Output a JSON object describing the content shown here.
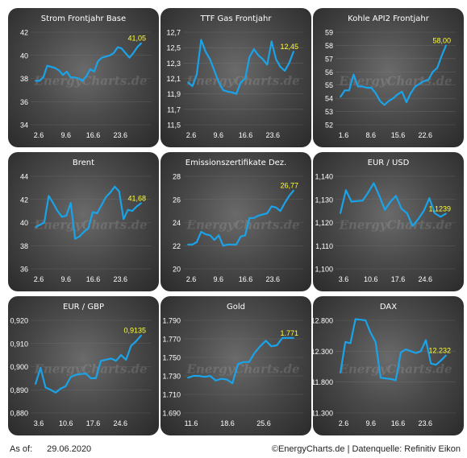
{
  "footer": {
    "asof_label": "As of:",
    "date": "29.06.2020",
    "source": "©EnergyCharts.de | Datenquelle: Refinitiv Eikon"
  },
  "watermark": "EnergyCharts.de",
  "colors": {
    "line": "#1aa3e8",
    "last_value": "#ffff33",
    "text": "#ffffff",
    "grid": "#7a7a7a"
  },
  "chart_data": [
    {
      "type": "line",
      "title": "Strom Frontjahr Base",
      "yticks": [
        "42",
        "40",
        "38",
        "36",
        "34"
      ],
      "ylim": [
        34,
        42
      ],
      "xticks": [
        "2.6",
        "9.6",
        "16.6",
        "23.6"
      ],
      "last_label": "41,05",
      "values": [
        37.8,
        37.8,
        38.1,
        39.1,
        39.0,
        38.9,
        38.7,
        38.3,
        38.6,
        38.1,
        38.1,
        38.0,
        37.8,
        38.2,
        38.8,
        38.6,
        39.5,
        39.8,
        39.9,
        40.0,
        40.2,
        40.7,
        40.6,
        40.2,
        39.8,
        40.2,
        40.7,
        41.05
      ]
    },
    {
      "type": "line",
      "title": "TTF Gas Frontjahr",
      "yticks": [
        "12,7",
        "12,5",
        "12,3",
        "12,1",
        "11,9",
        "11,7",
        "11,5"
      ],
      "ylim": [
        11.5,
        12.7
      ],
      "xticks": [
        "2.6",
        "9.6",
        "16.6",
        "23.6"
      ],
      "last_label": "12,45",
      "values": [
        12.05,
        12.0,
        12.15,
        12.6,
        12.45,
        12.35,
        12.2,
        12.05,
        11.95,
        11.93,
        11.92,
        11.9,
        12.05,
        12.1,
        12.38,
        12.48,
        12.4,
        12.35,
        12.28,
        12.58,
        12.35,
        12.25,
        12.2,
        12.3,
        12.45
      ]
    },
    {
      "type": "line",
      "title": "Kohle API2 Frontjahr",
      "yticks": [
        "59",
        "58",
        "57",
        "56",
        "55",
        "54",
        "53",
        "52"
      ],
      "ylim": [
        52,
        59
      ],
      "xticks": [
        "1.6",
        "8.6",
        "15.6",
        "22.6"
      ],
      "last_label": "58,00",
      "values": [
        54.1,
        54.6,
        54.6,
        55.8,
        54.9,
        54.9,
        54.8,
        54.8,
        54.4,
        53.8,
        53.5,
        53.8,
        54.0,
        54.3,
        54.5,
        53.7,
        54.4,
        54.9,
        55.1,
        55.3,
        55.4,
        56.0,
        56.3,
        57.2,
        58.0
      ]
    },
    {
      "type": "line",
      "title": "Brent",
      "yticks": [
        "44",
        "42",
        "40",
        "38",
        "36"
      ],
      "ylim": [
        36,
        44
      ],
      "xticks": [
        "2.6",
        "9.6",
        "16.6",
        "23.6"
      ],
      "last_label": "41,68",
      "values": [
        39.6,
        39.8,
        40.0,
        42.3,
        41.7,
        41.0,
        40.5,
        40.6,
        41.7,
        38.6,
        38.8,
        39.2,
        39.5,
        40.9,
        40.8,
        41.5,
        42.2,
        42.6,
        43.1,
        42.7,
        40.3,
        41.1,
        41.0,
        41.4,
        41.68
      ]
    },
    {
      "type": "line",
      "title": "Emissionszertifikate Dez.",
      "yticks": [
        "28",
        "26",
        "24",
        "22",
        "20"
      ],
      "ylim": [
        20,
        28
      ],
      "xticks": [
        "2.6",
        "9.6",
        "16.6",
        "23.6"
      ],
      "last_label": "26,77",
      "values": [
        22.1,
        22.1,
        22.3,
        23.2,
        23.0,
        22.9,
        22.5,
        22.9,
        22.0,
        22.1,
        22.1,
        22.1,
        22.8,
        22.9,
        24.4,
        24.4,
        24.6,
        24.7,
        24.8,
        25.4,
        25.3,
        25.0,
        25.7,
        26.3,
        26.77
      ]
    },
    {
      "type": "line",
      "title": "EUR / USD",
      "yticks": [
        "1,140",
        "1,130",
        "1,120",
        "1,110",
        "1,100"
      ],
      "ylim": [
        1.1,
        1.14
      ],
      "xticks": [
        "3.6",
        "10.6",
        "17.6",
        "24.6"
      ],
      "last_label": "1,1239",
      "values": [
        1.124,
        1.134,
        1.129,
        1.1293,
        1.1295,
        1.133,
        1.137,
        1.1315,
        1.1255,
        1.129,
        1.1315,
        1.126,
        1.124,
        1.1185,
        1.1215,
        1.125,
        1.1305,
        1.124,
        1.1225,
        1.1239
      ]
    },
    {
      "type": "line",
      "title": "EUR / GBP",
      "yticks": [
        "0,920",
        "0,910",
        "0,900",
        "0,890",
        "0,880"
      ],
      "ylim": [
        0.88,
        0.92
      ],
      "xticks": [
        "3.6",
        "10.6",
        "17.6",
        "24.6"
      ],
      "last_label": "0,9135",
      "values": [
        0.8925,
        0.8995,
        0.891,
        0.89,
        0.8888,
        0.8905,
        0.8915,
        0.8955,
        0.8965,
        0.8968,
        0.897,
        0.895,
        0.895,
        0.9025,
        0.903,
        0.9035,
        0.9025,
        0.905,
        0.903,
        0.909,
        0.911,
        0.9135
      ]
    },
    {
      "type": "line",
      "title": "Gold",
      "yticks": [
        "1.790",
        "1.770",
        "1.750",
        "1.730",
        "1.710",
        "1.690"
      ],
      "ylim": [
        1690,
        1790
      ],
      "xticks": [
        "11.6",
        "18.6",
        "25.6"
      ],
      "last_label": "1.771",
      "values": [
        1728,
        1730,
        1730,
        1729,
        1730,
        1725,
        1727,
        1726,
        1722,
        1743,
        1745,
        1745,
        1755,
        1762,
        1768,
        1762,
        1763,
        1771,
        1771,
        1771
      ]
    },
    {
      "type": "line",
      "title": "DAX",
      "yticks": [
        "12.800",
        "12.300",
        "11.800",
        "11.300"
      ],
      "ylim": [
        11300,
        12800
      ],
      "xticks": [
        "2.6",
        "9.6",
        "16.6",
        "23.6"
      ],
      "last_label": "12.232",
      "values": [
        11950,
        12450,
        12430,
        12820,
        12810,
        12800,
        12600,
        12450,
        11870,
        11860,
        11850,
        11830,
        12280,
        12330,
        12300,
        12270,
        12300,
        12480,
        12100,
        12080,
        12150,
        12232
      ]
    }
  ]
}
